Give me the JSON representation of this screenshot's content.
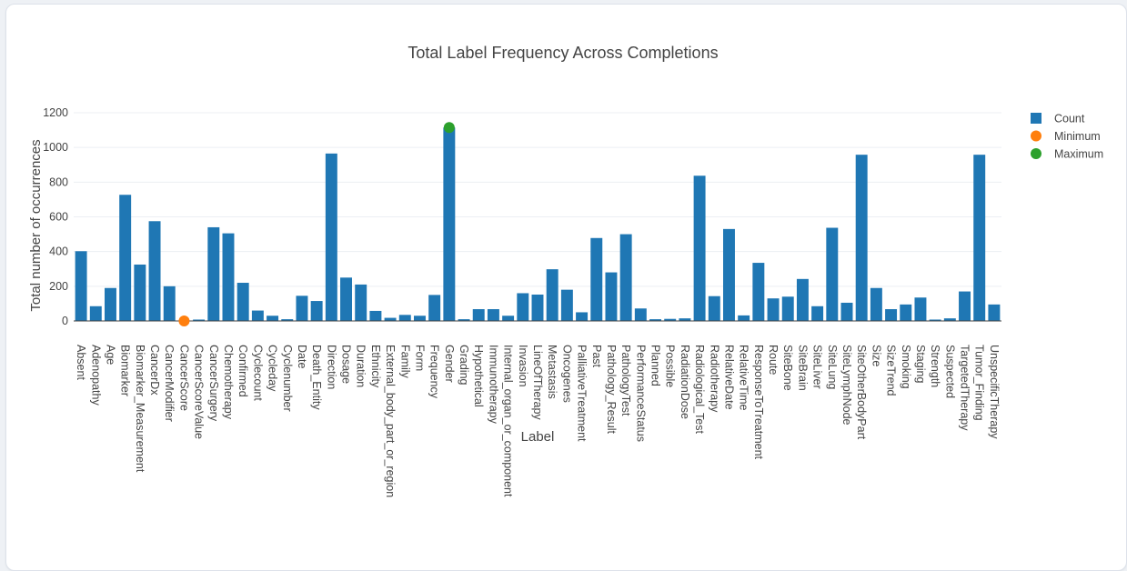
{
  "chart_data": {
    "type": "bar",
    "title": "Total Label Frequency Across Completions",
    "xlabel": "Label",
    "ylabel": "Total number of occurrences",
    "ylim": [
      0,
      1200
    ],
    "yticks": [
      0,
      200,
      400,
      600,
      800,
      1000,
      1200
    ],
    "grid": "horizontal",
    "legend_position": "top-right",
    "categories": [
      "Absent",
      "Adenopathy",
      "Age",
      "Biomarker",
      "Biomarker_Measurement",
      "CancerDx",
      "CancerModifier",
      "CancerScore",
      "CancerScoreValue",
      "CancerSurgery",
      "Chemotherapy",
      "Confirmed",
      "Cyclecount",
      "Cycleday",
      "Cyclenumber",
      "Date",
      "Death_Entity",
      "Direction",
      "Dosage",
      "Duration",
      "Ethnicity",
      "External_body_part_or_region",
      "Family",
      "Form",
      "Frequency",
      "Gender",
      "Grading",
      "Hypothetical",
      "Immunotherapy",
      "Internal_organ_or_component",
      "Invasion",
      "LineOfTherapy",
      "Metastasis",
      "Oncogenes",
      "PalliativeTreatment",
      "Past",
      "Pathology_Result",
      "PathologyTest",
      "PerformanceStatus",
      "Planned",
      "Possible",
      "RadiationDose",
      "Radiological_Test",
      "Radiotherapy",
      "RelativeDate",
      "RelativeTime",
      "ResponseToTreatment",
      "Route",
      "SiteBone",
      "SiteBrain",
      "SiteLiver",
      "SiteLung",
      "SiteLymphNode",
      "SiteOtherBodyPart",
      "Size",
      "SizeTrend",
      "Smoking",
      "Staging",
      "Strength",
      "Suspected",
      "TargetedTherapy",
      "Tumor_Finding",
      "UnspecificTherapy"
    ],
    "series": [
      {
        "name": "Count",
        "type": "bar",
        "color": "#1f77b4",
        "values": [
          402,
          85,
          190,
          727,
          325,
          575,
          200,
          0,
          8,
          540,
          505,
          220,
          60,
          30,
          10,
          145,
          115,
          965,
          250,
          210,
          58,
          18,
          35,
          30,
          150,
          1115,
          10,
          68,
          68,
          30,
          160,
          152,
          298,
          180,
          50,
          478,
          280,
          500,
          72,
          10,
          12,
          15,
          837,
          143,
          530,
          32,
          335,
          130,
          140,
          242,
          85,
          537,
          105,
          958,
          190,
          68,
          95,
          135,
          8,
          15,
          170,
          958,
          95
        ]
      },
      {
        "name": "Minimum",
        "type": "marker",
        "color": "#ff7f0e",
        "x": "CancerScore",
        "y": 0
      },
      {
        "name": "Maximum",
        "type": "marker",
        "color": "#2ca02c",
        "x": "Gender",
        "y": 1115
      }
    ]
  }
}
